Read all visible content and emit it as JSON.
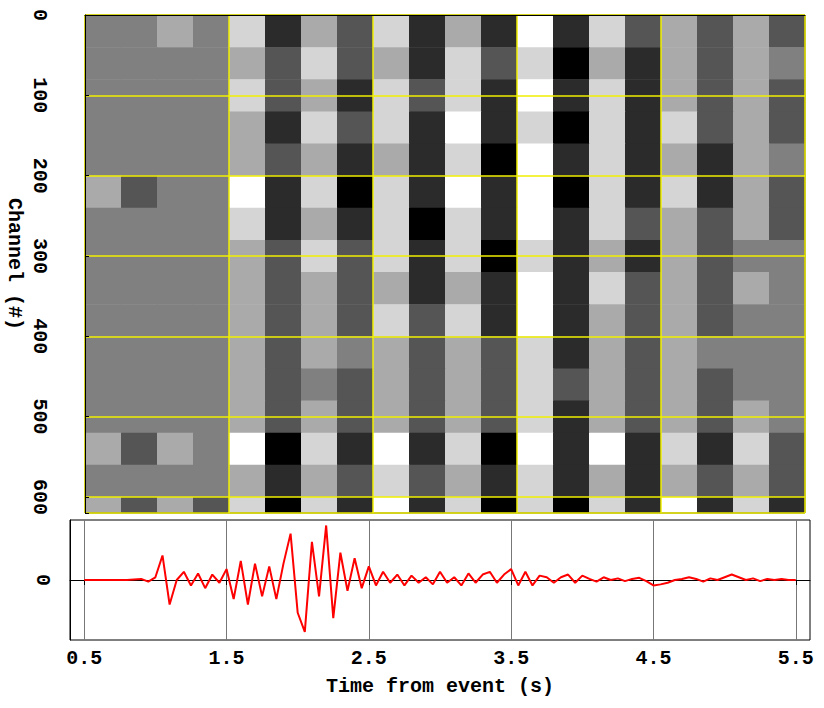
{
  "chart_data": [
    {
      "type": "heatmap",
      "y_label": "Channel (#)",
      "x_edges": [
        0.5,
        0.75,
        1,
        1.25,
        1.5,
        1.75,
        2,
        2.25,
        2.5,
        2.75,
        3,
        3.25,
        3.5,
        3.75,
        4,
        4.25,
        4.5,
        4.75,
        5,
        5.25,
        5.5
      ],
      "y_edges": [
        0,
        40,
        80,
        120,
        160,
        200,
        240,
        280,
        320,
        360,
        400,
        440,
        480,
        520,
        560,
        600,
        620
      ],
      "cells": [
        [
          0,
          0,
          1,
          0,
          2,
          -2,
          1,
          -1,
          2,
          -2,
          1,
          -2,
          3,
          -2,
          2,
          -1,
          1,
          -1,
          1,
          -1
        ],
        [
          0,
          0,
          0,
          0,
          1,
          -1,
          2,
          -1,
          1,
          -2,
          2,
          -1,
          2,
          -3,
          1,
          -2,
          1,
          -1,
          1,
          0
        ],
        [
          0,
          0,
          0,
          0,
          2,
          -1,
          1,
          -2,
          2,
          -1,
          2,
          -2,
          3,
          -2,
          2,
          -2,
          1,
          -1,
          1,
          -1
        ],
        [
          0,
          0,
          0,
          0,
          1,
          -2,
          2,
          -1,
          2,
          -2,
          3,
          -2,
          2,
          -3,
          2,
          -2,
          2,
          -1,
          1,
          -1
        ],
        [
          0,
          0,
          0,
          0,
          1,
          -1,
          1,
          -2,
          1,
          -2,
          2,
          -3,
          3,
          -2,
          2,
          -2,
          1,
          -2,
          1,
          0
        ],
        [
          1,
          -1,
          0,
          0,
          3,
          -2,
          2,
          -3,
          2,
          -2,
          3,
          -2,
          3,
          -3,
          2,
          -2,
          2,
          -2,
          1,
          -1
        ],
        [
          0,
          0,
          0,
          0,
          2,
          -2,
          1,
          -2,
          2,
          -3,
          2,
          -2,
          3,
          -2,
          2,
          -1,
          1,
          -1,
          1,
          -1
        ],
        [
          0,
          0,
          0,
          0,
          1,
          -1,
          2,
          -1,
          2,
          -2,
          2,
          -3,
          2,
          -2,
          1,
          -2,
          1,
          -1,
          0,
          0
        ],
        [
          0,
          0,
          0,
          0,
          1,
          -1,
          1,
          -1,
          1,
          -2,
          1,
          -2,
          3,
          -2,
          2,
          -1,
          1,
          -1,
          1,
          0
        ],
        [
          0,
          0,
          0,
          0,
          1,
          -1,
          1,
          -1,
          2,
          -1,
          2,
          -2,
          3,
          -2,
          1,
          -1,
          1,
          -1,
          0,
          0
        ],
        [
          0,
          0,
          0,
          0,
          1,
          -1,
          1,
          0,
          1,
          -1,
          1,
          -1,
          2,
          -2,
          1,
          -1,
          1,
          0,
          0,
          0
        ],
        [
          0,
          0,
          0,
          0,
          1,
          -1,
          0,
          -1,
          1,
          -1,
          1,
          -1,
          2,
          -1,
          1,
          -1,
          1,
          -1,
          0,
          0
        ],
        [
          0,
          0,
          0,
          0,
          1,
          -1,
          1,
          -1,
          1,
          -1,
          1,
          -1,
          2,
          -2,
          1,
          -1,
          1,
          -1,
          1,
          0
        ],
        [
          1,
          -1,
          1,
          0,
          3,
          -3,
          2,
          -2,
          3,
          -2,
          2,
          -3,
          3,
          -2,
          3,
          -2,
          2,
          -2,
          2,
          -1
        ],
        [
          0,
          0,
          0,
          0,
          1,
          -2,
          1,
          -1,
          2,
          -1,
          1,
          -2,
          2,
          -2,
          1,
          -2,
          1,
          -1,
          1,
          -1
        ],
        [
          1,
          -1,
          1,
          -1,
          2,
          -3,
          2,
          -2,
          3,
          -2,
          2,
          -3,
          2,
          -3,
          2,
          -2,
          3,
          -2,
          2,
          -2
        ]
      ],
      "value_range": [
        -3,
        3
      ],
      "xlim": [
        0.5,
        5.5
      ],
      "xticks": [
        0.5,
        1.5,
        2.5,
        3.5,
        4.5,
        5.5
      ],
      "ylim": [
        0,
        620
      ],
      "yticks": [
        0,
        100,
        200,
        300,
        400,
        500,
        600
      ],
      "grid": true,
      "tick_labels": "y"
    },
    {
      "type": "line",
      "x_label": "Time from event (s)",
      "x": [
        0.5,
        0.55,
        0.6,
        0.65,
        0.7,
        0.75,
        0.8,
        0.85,
        0.9,
        0.95,
        1,
        1.05,
        1.1,
        1.15,
        1.2,
        1.25,
        1.3,
        1.35,
        1.4,
        1.45,
        1.5,
        1.55,
        1.6,
        1.65,
        1.7,
        1.75,
        1.8,
        1.85,
        1.9,
        1.95,
        2,
        2.05,
        2.1,
        2.15,
        2.2,
        2.25,
        2.3,
        2.35,
        2.4,
        2.45,
        2.5,
        2.55,
        2.6,
        2.65,
        2.7,
        2.75,
        2.8,
        2.85,
        2.9,
        2.95,
        3,
        3.05,
        3.1,
        3.15,
        3.2,
        3.25,
        3.3,
        3.35,
        3.4,
        3.45,
        3.5,
        3.55,
        3.6,
        3.65,
        3.7,
        3.75,
        3.8,
        3.85,
        3.9,
        3.95,
        4,
        4.05,
        4.1,
        4.15,
        4.2,
        4.25,
        4.3,
        4.35,
        4.4,
        4.45,
        4.5,
        4.55,
        4.6,
        4.65,
        4.7,
        4.75,
        4.8,
        4.85,
        4.9,
        4.95,
        5,
        5.05,
        5.1,
        5.15,
        5.2,
        5.25,
        5.3,
        5.35,
        5.4,
        5.45,
        5.5
      ],
      "values": [
        0,
        0,
        0,
        0,
        0,
        0,
        0,
        0.01,
        0.02,
        -0.03,
        0.05,
        0.45,
        -0.45,
        0,
        0.15,
        -0.1,
        0.12,
        -0.15,
        0.1,
        -0.05,
        0.2,
        -0.35,
        0.35,
        -0.45,
        0.3,
        -0.3,
        0.25,
        -0.35,
        0.3,
        0.85,
        -0.6,
        -0.95,
        0.7,
        -0.3,
        1,
        -0.7,
        0.5,
        -0.2,
        0.4,
        -0.15,
        0.25,
        -0.1,
        0.15,
        -0.05,
        0.1,
        -0.1,
        0.08,
        -0.05,
        0.05,
        -0.08,
        0.15,
        -0.05,
        0.05,
        -0.1,
        0.12,
        -0.05,
        0.1,
        0.15,
        -0.05,
        0.1,
        0.2,
        -0.1,
        0.15,
        -0.1,
        0.08,
        0.05,
        -0.05,
        0.05,
        0.1,
        -0.05,
        0.08,
        0.02,
        -0.03,
        0.05,
        0,
        0.03,
        -0.02,
        0.02,
        0.04,
        -0.02,
        -0.1,
        -0.08,
        -0.05,
        0,
        0.02,
        0.05,
        0.02,
        -0.03,
        0.03,
        0,
        0.05,
        0.1,
        0.05,
        0,
        0.03,
        -0.02,
        0.02,
        0,
        0.02,
        0,
        0
      ],
      "color": "#ff0000",
      "xlim": [
        0.4,
        5.6
      ],
      "xticks": [
        0.5,
        1.5,
        2.5,
        3.5,
        4.5,
        5.5
      ],
      "ylim": [
        -1.1,
        1.1
      ],
      "yticks": [
        0
      ],
      "grid": true
    }
  ]
}
